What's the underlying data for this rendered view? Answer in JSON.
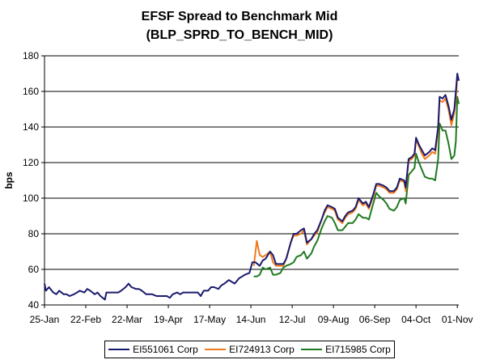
{
  "chart_data": {
    "type": "line",
    "title": "EFSF Spread to Benchmark Mid",
    "subtitle": "(BLP_SPRD_TO_BENCH_MID)",
    "ylabel": "bps",
    "xlabel": "",
    "ylim": [
      40,
      180
    ],
    "yticks": [
      40,
      60,
      80,
      100,
      120,
      140,
      160,
      180
    ],
    "xlim": [
      "2011-01-25",
      "2011-11-02"
    ],
    "x_tick_labels": [
      "25-Jan",
      "22-Feb",
      "22-Mar",
      "19-Apr",
      "17-May",
      "14-Jun",
      "12-Jul",
      "09-Aug",
      "06-Sep",
      "04-Oct",
      "01-Nov"
    ],
    "x_tick_dates": [
      "2011-01-25",
      "2011-02-22",
      "2011-03-22",
      "2011-04-19",
      "2011-05-17",
      "2011-06-14",
      "2011-07-12",
      "2011-08-09",
      "2011-09-06",
      "2011-10-04",
      "2011-11-01"
    ],
    "grid": "horizontal",
    "legend_position": "bottom",
    "series": [
      {
        "name": "EI551061 Corp",
        "color": "#1a1a6e",
        "points": [
          [
            "2011-01-25",
            52
          ],
          [
            "2011-01-26",
            48
          ],
          [
            "2011-01-28",
            50
          ],
          [
            "2011-01-31",
            47
          ],
          [
            "2011-02-02",
            46
          ],
          [
            "2011-02-04",
            48
          ],
          [
            "2011-02-07",
            46
          ],
          [
            "2011-02-09",
            46
          ],
          [
            "2011-02-11",
            45
          ],
          [
            "2011-02-14",
            46
          ],
          [
            "2011-02-16",
            47
          ],
          [
            "2011-02-18",
            48
          ],
          [
            "2011-02-21",
            47
          ],
          [
            "2011-02-23",
            49
          ],
          [
            "2011-02-25",
            48
          ],
          [
            "2011-02-28",
            46
          ],
          [
            "2011-03-02",
            47
          ],
          [
            "2011-03-04",
            45
          ],
          [
            "2011-03-07",
            43
          ],
          [
            "2011-03-08",
            47
          ],
          [
            "2011-03-10",
            47
          ],
          [
            "2011-03-14",
            47
          ],
          [
            "2011-03-16",
            47
          ],
          [
            "2011-03-18",
            48
          ],
          [
            "2011-03-21",
            50
          ],
          [
            "2011-03-23",
            52
          ],
          [
            "2011-03-25",
            50
          ],
          [
            "2011-03-28",
            49
          ],
          [
            "2011-03-30",
            49
          ],
          [
            "2011-04-01",
            48
          ],
          [
            "2011-04-04",
            46
          ],
          [
            "2011-04-06",
            46
          ],
          [
            "2011-04-08",
            46
          ],
          [
            "2011-04-11",
            45
          ],
          [
            "2011-04-13",
            45
          ],
          [
            "2011-04-15",
            45
          ],
          [
            "2011-04-18",
            45
          ],
          [
            "2011-04-20",
            44
          ],
          [
            "2011-04-22",
            46
          ],
          [
            "2011-04-25",
            47
          ],
          [
            "2011-04-27",
            46
          ],
          [
            "2011-04-29",
            47
          ],
          [
            "2011-05-02",
            47
          ],
          [
            "2011-05-04",
            47
          ],
          [
            "2011-05-06",
            47
          ],
          [
            "2011-05-09",
            47
          ],
          [
            "2011-05-11",
            45
          ],
          [
            "2011-05-13",
            48
          ],
          [
            "2011-05-16",
            48
          ],
          [
            "2011-05-18",
            50
          ],
          [
            "2011-05-20",
            50
          ],
          [
            "2011-05-23",
            49
          ],
          [
            "2011-05-25",
            51
          ],
          [
            "2011-05-27",
            52
          ],
          [
            "2011-05-30",
            54
          ],
          [
            "2011-06-01",
            53
          ],
          [
            "2011-06-03",
            52
          ],
          [
            "2011-06-06",
            55
          ],
          [
            "2011-06-08",
            56
          ],
          [
            "2011-06-10",
            57
          ],
          [
            "2011-06-13",
            58
          ],
          [
            "2011-06-15",
            64
          ],
          [
            "2011-06-17",
            64
          ],
          [
            "2011-06-20",
            62
          ],
          [
            "2011-06-22",
            65
          ],
          [
            "2011-06-24",
            66
          ],
          [
            "2011-06-27",
            70
          ],
          [
            "2011-06-29",
            68
          ],
          [
            "2011-07-01",
            63
          ],
          [
            "2011-07-04",
            63
          ],
          [
            "2011-07-06",
            63
          ],
          [
            "2011-07-08",
            66
          ],
          [
            "2011-07-11",
            75
          ],
          [
            "2011-07-13",
            80
          ],
          [
            "2011-07-15",
            80
          ],
          [
            "2011-07-18",
            82
          ],
          [
            "2011-07-20",
            83
          ],
          [
            "2011-07-22",
            75
          ],
          [
            "2011-07-25",
            77
          ],
          [
            "2011-07-27",
            80
          ],
          [
            "2011-07-29",
            82
          ],
          [
            "2011-08-01",
            88
          ],
          [
            "2011-08-03",
            93
          ],
          [
            "2011-08-05",
            96
          ],
          [
            "2011-08-08",
            95
          ],
          [
            "2011-08-10",
            94
          ],
          [
            "2011-08-12",
            89
          ],
          [
            "2011-08-15",
            87
          ],
          [
            "2011-08-17",
            90
          ],
          [
            "2011-08-19",
            92
          ],
          [
            "2011-08-22",
            93
          ],
          [
            "2011-08-24",
            95
          ],
          [
            "2011-08-26",
            100
          ],
          [
            "2011-08-29",
            97
          ],
          [
            "2011-08-31",
            98
          ],
          [
            "2011-09-02",
            95
          ],
          [
            "2011-09-05",
            102
          ],
          [
            "2011-09-07",
            108
          ],
          [
            "2011-09-09",
            108
          ],
          [
            "2011-09-12",
            107
          ],
          [
            "2011-09-14",
            106
          ],
          [
            "2011-09-16",
            104
          ],
          [
            "2011-09-19",
            104
          ],
          [
            "2011-09-21",
            106
          ],
          [
            "2011-09-23",
            111
          ],
          [
            "2011-09-26",
            110
          ],
          [
            "2011-09-27",
            106
          ],
          [
            "2011-09-29",
            122
          ],
          [
            "2011-10-01",
            123
          ],
          [
            "2011-10-03",
            125
          ],
          [
            "2011-10-04",
            134
          ],
          [
            "2011-10-06",
            130
          ],
          [
            "2011-10-08",
            127
          ],
          [
            "2011-10-10",
            124
          ],
          [
            "2011-10-13",
            126
          ],
          [
            "2011-10-15",
            128
          ],
          [
            "2011-10-17",
            127
          ],
          [
            "2011-10-19",
            140
          ],
          [
            "2011-10-20",
            157
          ],
          [
            "2011-10-22",
            156
          ],
          [
            "2011-10-24",
            158
          ],
          [
            "2011-10-26",
            152
          ],
          [
            "2011-10-28",
            144
          ],
          [
            "2011-10-30",
            150
          ],
          [
            "2011-10-31",
            160
          ],
          [
            "2011-11-01",
            170
          ],
          [
            "2011-11-02",
            166
          ]
        ]
      },
      {
        "name": "EI724913 Corp",
        "color": "#ef7a1e",
        "points": [
          [
            "2011-06-16",
            62
          ],
          [
            "2011-06-18",
            76
          ],
          [
            "2011-06-20",
            68
          ],
          [
            "2011-06-22",
            67
          ],
          [
            "2011-06-24",
            68
          ],
          [
            "2011-06-27",
            70
          ],
          [
            "2011-06-29",
            64
          ],
          [
            "2011-07-01",
            62
          ],
          [
            "2011-07-04",
            62
          ],
          [
            "2011-07-06",
            62
          ],
          [
            "2011-07-08",
            66
          ],
          [
            "2011-07-11",
            75
          ],
          [
            "2011-07-13",
            79
          ],
          [
            "2011-07-15",
            79
          ],
          [
            "2011-07-18",
            80
          ],
          [
            "2011-07-20",
            82
          ],
          [
            "2011-07-22",
            74
          ],
          [
            "2011-07-25",
            77
          ],
          [
            "2011-07-27",
            79
          ],
          [
            "2011-07-29",
            81
          ],
          [
            "2011-08-01",
            88
          ],
          [
            "2011-08-03",
            92
          ],
          [
            "2011-08-05",
            95
          ],
          [
            "2011-08-08",
            94
          ],
          [
            "2011-08-10",
            93
          ],
          [
            "2011-08-12",
            88
          ],
          [
            "2011-08-15",
            86
          ],
          [
            "2011-08-17",
            89
          ],
          [
            "2011-08-19",
            91
          ],
          [
            "2011-08-22",
            92
          ],
          [
            "2011-08-24",
            94
          ],
          [
            "2011-08-26",
            99
          ],
          [
            "2011-08-29",
            96
          ],
          [
            "2011-08-31",
            97
          ],
          [
            "2011-09-02",
            94
          ],
          [
            "2011-09-05",
            101
          ],
          [
            "2011-09-07",
            107
          ],
          [
            "2011-09-09",
            107
          ],
          [
            "2011-09-12",
            106
          ],
          [
            "2011-09-14",
            105
          ],
          [
            "2011-09-16",
            103
          ],
          [
            "2011-09-19",
            103
          ],
          [
            "2011-09-21",
            105
          ],
          [
            "2011-09-23",
            110
          ],
          [
            "2011-09-26",
            109
          ],
          [
            "2011-09-27",
            104
          ],
          [
            "2011-09-29",
            121
          ],
          [
            "2011-10-01",
            122
          ],
          [
            "2011-10-03",
            124
          ],
          [
            "2011-10-04",
            133
          ],
          [
            "2011-10-06",
            129
          ],
          [
            "2011-10-08",
            125
          ],
          [
            "2011-10-10",
            122
          ],
          [
            "2011-10-13",
            124
          ],
          [
            "2011-10-15",
            126
          ],
          [
            "2011-10-17",
            125
          ],
          [
            "2011-10-19",
            138
          ],
          [
            "2011-10-20",
            155
          ],
          [
            "2011-10-22",
            154
          ],
          [
            "2011-10-24",
            156
          ],
          [
            "2011-10-26",
            150
          ],
          [
            "2011-10-28",
            141
          ],
          [
            "2011-10-30",
            148
          ],
          [
            "2011-10-31",
            156
          ],
          [
            "2011-11-01",
            168
          ],
          [
            "2011-11-02",
            166
          ]
        ]
      },
      {
        "name": "EI715985 Corp",
        "color": "#1f7a1f",
        "points": [
          [
            "2011-06-16",
            56
          ],
          [
            "2011-06-18",
            56
          ],
          [
            "2011-06-20",
            57
          ],
          [
            "2011-06-22",
            61
          ],
          [
            "2011-06-24",
            60
          ],
          [
            "2011-06-27",
            61
          ],
          [
            "2011-06-29",
            57
          ],
          [
            "2011-07-01",
            57
          ],
          [
            "2011-07-04",
            58
          ],
          [
            "2011-07-06",
            61
          ],
          [
            "2011-07-08",
            62
          ],
          [
            "2011-07-11",
            63
          ],
          [
            "2011-07-13",
            64
          ],
          [
            "2011-07-15",
            67
          ],
          [
            "2011-07-18",
            68
          ],
          [
            "2011-07-20",
            70
          ],
          [
            "2011-07-22",
            66
          ],
          [
            "2011-07-25",
            69
          ],
          [
            "2011-07-27",
            73
          ],
          [
            "2011-07-29",
            76
          ],
          [
            "2011-08-01",
            83
          ],
          [
            "2011-08-03",
            87
          ],
          [
            "2011-08-05",
            90
          ],
          [
            "2011-08-08",
            89
          ],
          [
            "2011-08-10",
            86
          ],
          [
            "2011-08-12",
            82
          ],
          [
            "2011-08-15",
            82
          ],
          [
            "2011-08-17",
            84
          ],
          [
            "2011-08-19",
            86
          ],
          [
            "2011-08-22",
            86
          ],
          [
            "2011-08-24",
            88
          ],
          [
            "2011-08-26",
            91
          ],
          [
            "2011-08-29",
            89
          ],
          [
            "2011-08-31",
            89
          ],
          [
            "2011-09-02",
            88
          ],
          [
            "2011-09-05",
            97
          ],
          [
            "2011-09-07",
            103
          ],
          [
            "2011-09-09",
            101
          ],
          [
            "2011-09-12",
            99
          ],
          [
            "2011-09-14",
            97
          ],
          [
            "2011-09-16",
            94
          ],
          [
            "2011-09-19",
            93
          ],
          [
            "2011-09-21",
            95
          ],
          [
            "2011-09-23",
            99
          ],
          [
            "2011-09-26",
            100
          ],
          [
            "2011-09-27",
            97
          ],
          [
            "2011-09-29",
            113
          ],
          [
            "2011-10-01",
            115
          ],
          [
            "2011-10-03",
            117
          ],
          [
            "2011-10-04",
            125
          ],
          [
            "2011-10-06",
            120
          ],
          [
            "2011-10-08",
            116
          ],
          [
            "2011-10-10",
            112
          ],
          [
            "2011-10-13",
            111
          ],
          [
            "2011-10-15",
            111
          ],
          [
            "2011-10-17",
            110
          ],
          [
            "2011-10-19",
            122
          ],
          [
            "2011-10-20",
            142
          ],
          [
            "2011-10-22",
            138
          ],
          [
            "2011-10-24",
            138
          ],
          [
            "2011-10-26",
            131
          ],
          [
            "2011-10-28",
            122
          ],
          [
            "2011-10-30",
            124
          ],
          [
            "2011-10-31",
            132
          ],
          [
            "2011-11-01",
            157
          ],
          [
            "2011-11-02",
            153
          ]
        ]
      }
    ]
  }
}
